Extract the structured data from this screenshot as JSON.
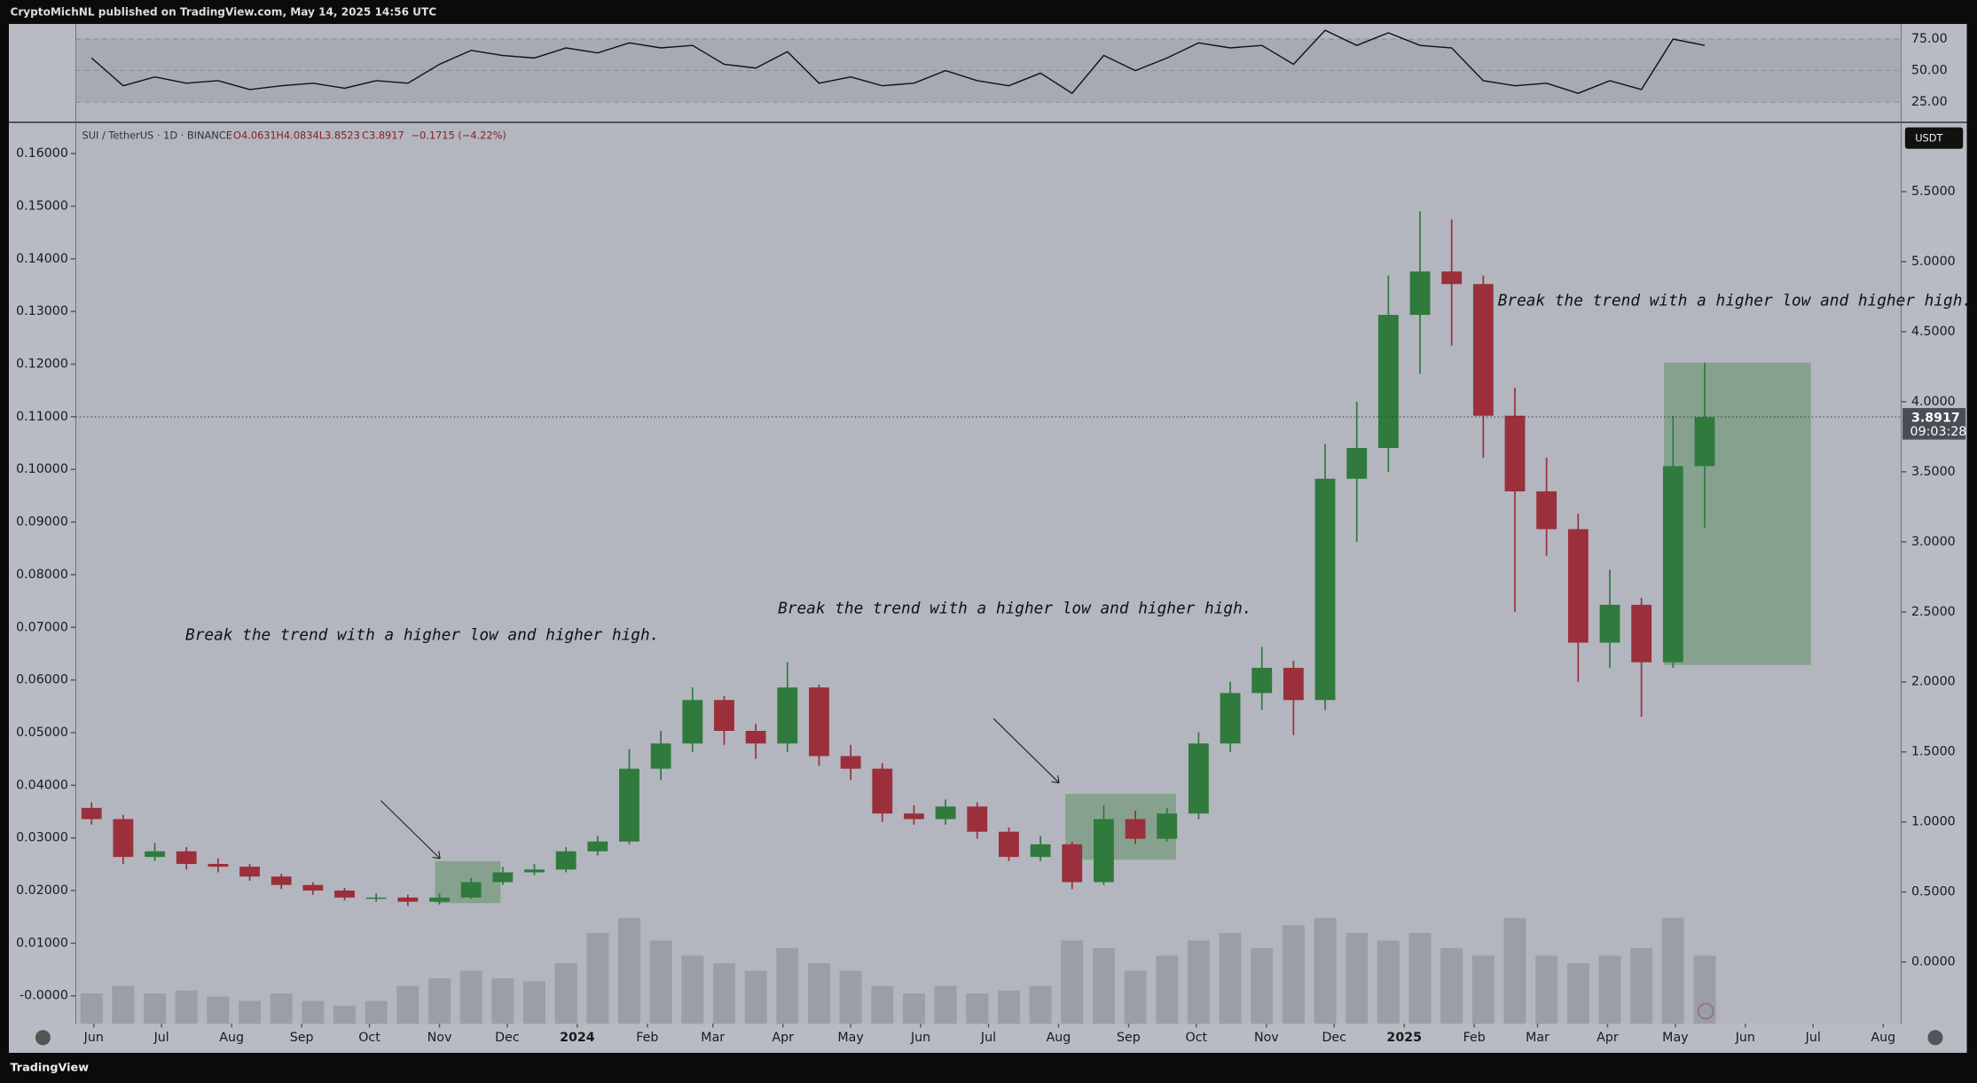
{
  "chart_data": {
    "type": "candlestick",
    "header": "CryptoMichNL published on TradingView.com, May 14, 2025 14:56 UTC",
    "legend": {
      "symbol": "SUI / TetherUS · 1D · BINANCE",
      "open": "O4.0631",
      "high": "H4.0834",
      "low": "L3.8523",
      "close": "C3.8917",
      "change": "−0.1715 (−4.22%)"
    },
    "currency": "USDT",
    "last_price": 3.8917,
    "countdown": "09:03:28",
    "annotations": [
      "Break the trend with a higher low and higher high.",
      "Break the trend with a higher low and higher high.",
      "Break the trend with a higher low and higher high."
    ],
    "footer": "TradingView",
    "up_color": "#2f7a3c",
    "down_color": "#9b2f3b",
    "xlim": [
      0,
      808
    ],
    "xticks": [
      {
        "value": 8,
        "label": "Jun"
      },
      {
        "value": 38,
        "label": "Jul"
      },
      {
        "value": 69,
        "label": "Aug"
      },
      {
        "value": 100,
        "label": "Sep"
      },
      {
        "value": 130,
        "label": "Oct"
      },
      {
        "value": 161,
        "label": "Nov"
      },
      {
        "value": 191,
        "label": "Dec"
      },
      {
        "value": 222,
        "label": "2024"
      },
      {
        "value": 253,
        "label": "Feb"
      },
      {
        "value": 282,
        "label": "Mar"
      },
      {
        "value": 313,
        "label": "Apr"
      },
      {
        "value": 343,
        "label": "May"
      },
      {
        "value": 374,
        "label": "Jun"
      },
      {
        "value": 404,
        "label": "Jul"
      },
      {
        "value": 435,
        "label": "Aug"
      },
      {
        "value": 466,
        "label": "Sep"
      },
      {
        "value": 496,
        "label": "Oct"
      },
      {
        "value": 527,
        "label": "Nov"
      },
      {
        "value": 557,
        "label": "Dec"
      },
      {
        "value": 588,
        "label": "2025"
      },
      {
        "value": 619,
        "label": "Feb"
      },
      {
        "value": 647,
        "label": "Mar"
      },
      {
        "value": 678,
        "label": "Apr"
      },
      {
        "value": 708,
        "label": "May"
      },
      {
        "value": 739,
        "label": "Jun"
      },
      {
        "value": 769,
        "label": "Jul"
      },
      {
        "value": 800,
        "label": "Aug"
      }
    ],
    "ylim": [
      -0.441,
      5.986
    ],
    "yticks": [
      {
        "value": 0,
        "label": "0.0000"
      },
      {
        "value": 0.5,
        "label": "0.5000"
      },
      {
        "value": 1,
        "label": "1.0000"
      },
      {
        "value": 1.5,
        "label": "1.5000"
      },
      {
        "value": 2,
        "label": "2.0000"
      },
      {
        "value": 2.5,
        "label": "2.5000"
      },
      {
        "value": 3,
        "label": "3.0000"
      },
      {
        "value": 3.5,
        "label": "3.5000"
      },
      {
        "value": 4,
        "label": "4.0000"
      },
      {
        "value": 4.5,
        "label": "4.5000"
      },
      {
        "value": 5,
        "label": "5.0000"
      },
      {
        "value": 5.5,
        "label": "5.5000"
      }
    ],
    "y3lim": [
      -0.0053,
      0.1657
    ],
    "y3ticks": [
      {
        "value": 0,
        "label": "-0.0000"
      },
      {
        "value": 0.01,
        "label": "0.01000"
      },
      {
        "value": 0.02,
        "label": "0.02000"
      },
      {
        "value": 0.03,
        "label": "0.03000"
      },
      {
        "value": 0.04,
        "label": "0.04000"
      },
      {
        "value": 0.05,
        "label": "0.05000"
      },
      {
        "value": 0.06,
        "label": "0.06000"
      },
      {
        "value": 0.07,
        "label": "0.07000"
      },
      {
        "value": 0.08,
        "label": "0.08000"
      },
      {
        "value": 0.09,
        "label": "0.09000"
      },
      {
        "value": 0.1,
        "label": "0.10000"
      },
      {
        "value": 0.11,
        "label": "0.11000"
      },
      {
        "value": 0.12,
        "label": "0.12000"
      },
      {
        "value": 0.13,
        "label": "0.13000"
      },
      {
        "value": 0.14,
        "label": "0.14000"
      },
      {
        "value": 0.15,
        "label": "0.15000"
      },
      {
        "value": 0.16,
        "label": "0.16000"
      }
    ],
    "x": [
      0,
      14,
      28,
      42,
      56,
      70,
      84,
      98,
      112,
      126,
      140,
      154,
      168,
      182,
      196,
      210,
      224,
      238,
      252,
      266,
      280,
      294,
      308,
      322,
      336,
      350,
      364,
      378,
      392,
      406,
      420,
      434,
      448,
      462,
      476,
      490,
      504,
      518,
      532,
      546,
      560,
      574,
      588,
      602,
      616,
      630,
      644,
      658,
      672,
      686,
      700,
      714
    ],
    "open": [
      1.1,
      1.02,
      0.75,
      0.79,
      0.7,
      0.68,
      0.61,
      0.55,
      0.51,
      0.46,
      0.46,
      0.43,
      0.46,
      0.57,
      0.64,
      0.66,
      0.79,
      0.86,
      1.38,
      1.56,
      1.87,
      1.65,
      1.56,
      1.96,
      1.47,
      1.38,
      1.06,
      1.02,
      1.11,
      0.93,
      0.75,
      0.84,
      0.57,
      1.02,
      0.88,
      1.06,
      1.56,
      1.92,
      2.1,
      1.87,
      3.45,
      3.67,
      4.62,
      4.93,
      4.84,
      3.9,
      3.36,
      3.09,
      2.28,
      2.55,
      2.14,
      3.54
    ],
    "high": [
      1.14,
      1.05,
      0.85,
      0.82,
      0.74,
      0.7,
      0.63,
      0.57,
      0.53,
      0.49,
      0.48,
      0.49,
      0.6,
      0.68,
      0.7,
      0.82,
      0.9,
      1.52,
      1.65,
      1.96,
      1.9,
      1.7,
      2.14,
      1.98,
      1.55,
      1.42,
      1.12,
      1.16,
      1.14,
      0.96,
      0.9,
      0.86,
      1.12,
      1.08,
      1.1,
      1.64,
      2.0,
      2.25,
      2.15,
      3.7,
      4.0,
      4.9,
      5.36,
      5.3,
      4.9,
      4.1,
      3.6,
      3.2,
      2.8,
      2.6,
      3.9,
      4.28
    ],
    "low": [
      0.98,
      0.7,
      0.72,
      0.66,
      0.64,
      0.58,
      0.52,
      0.48,
      0.44,
      0.43,
      0.4,
      0.41,
      0.45,
      0.55,
      0.62,
      0.64,
      0.76,
      0.84,
      1.3,
      1.5,
      1.55,
      1.45,
      1.5,
      1.4,
      1.3,
      1.0,
      0.98,
      0.98,
      0.88,
      0.72,
      0.72,
      0.52,
      0.55,
      0.84,
      0.86,
      1.02,
      1.5,
      1.8,
      1.62,
      1.8,
      3.0,
      3.5,
      4.2,
      4.4,
      3.6,
      2.5,
      2.9,
      2.0,
      2.1,
      1.75,
      2.1,
      3.1
    ],
    "close": [
      1.02,
      0.75,
      0.79,
      0.7,
      0.68,
      0.61,
      0.55,
      0.51,
      0.46,
      0.46,
      0.43,
      0.46,
      0.57,
      0.64,
      0.66,
      0.79,
      0.86,
      1.38,
      1.56,
      1.87,
      1.65,
      1.56,
      1.96,
      1.47,
      1.38,
      1.06,
      1.02,
      1.11,
      0.93,
      0.75,
      0.84,
      0.57,
      1.02,
      0.88,
      1.06,
      1.56,
      1.92,
      2.1,
      1.87,
      3.45,
      3.67,
      4.62,
      4.93,
      4.84,
      3.9,
      3.36,
      3.09,
      2.28,
      2.55,
      2.14,
      3.54,
      3.89
    ],
    "volume": [
      20,
      25,
      20,
      22,
      18,
      15,
      20,
      15,
      12,
      15,
      25,
      30,
      35,
      30,
      28,
      40,
      60,
      70,
      55,
      45,
      40,
      35,
      50,
      40,
      35,
      25,
      20,
      25,
      20,
      22,
      25,
      55,
      50,
      35,
      45,
      55,
      60,
      50,
      65,
      70,
      60,
      55,
      60,
      50,
      45,
      70,
      45,
      40,
      45,
      50,
      70,
      45
    ],
    "volume_ylim": [
      0,
      100
    ],
    "rsi": [
      60,
      38,
      45,
      40,
      42,
      35,
      38,
      40,
      36,
      42,
      40,
      55,
      66,
      62,
      60,
      68,
      64,
      72,
      68,
      70,
      55,
      52,
      65,
      40,
      45,
      38,
      40,
      50,
      42,
      38,
      48,
      32,
      62,
      50,
      60,
      72,
      68,
      70,
      55,
      82,
      70,
      80,
      70,
      68,
      42,
      38,
      40,
      32,
      42,
      35,
      75,
      70
    ],
    "rsi_ylim": [
      10,
      86
    ],
    "rsi_yticks": [
      {
        "value": 25,
        "label": "25.00"
      },
      {
        "value": 50,
        "label": "50.00"
      },
      {
        "value": 75,
        "label": "75.00"
      }
    ],
    "boxes": [
      {
        "x": [
          159,
          188
        ],
        "y": [
          0.42,
          0.72
        ]
      },
      {
        "x": [
          438,
          487
        ],
        "y": [
          0.73,
          1.2
        ]
      },
      {
        "x": [
          703,
          768
        ],
        "y": [
          2.12,
          4.28
        ]
      }
    ]
  }
}
